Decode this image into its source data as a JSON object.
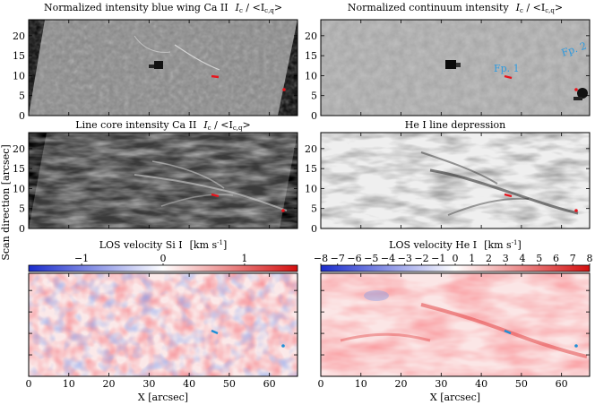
{
  "figure": {
    "panels": [
      {
        "id": "p1",
        "title": "Normalized intensity blue wing Ca II",
        "title_math": "I",
        "title_sub": "c",
        "title_rest": " / <I",
        "title_sub2": "c,q",
        "title_end": ">",
        "y_ticks": [
          "0",
          "5",
          "10",
          "15",
          "20"
        ]
      },
      {
        "id": "p2",
        "title": "Normalized continuum intensity",
        "title_math": "I",
        "title_sub": "c",
        "title_rest": " / <I",
        "title_sub2": "c,q",
        "title_end": ">",
        "y_ticks": [
          "0",
          "5",
          "10",
          "15",
          "20"
        ],
        "annotations": [
          "Fp. 1",
          "Fp. 2"
        ]
      },
      {
        "id": "p3",
        "title": "Line core intensity Ca II",
        "title_math": "I",
        "title_sub": "c",
        "title_rest": " / <I",
        "title_sub2": "c,q",
        "title_end": ">",
        "y_ticks": [
          "0",
          "5",
          "10",
          "15",
          "20"
        ]
      },
      {
        "id": "p4",
        "title": "He I line depression",
        "y_ticks": [
          "0",
          "5",
          "10",
          "15",
          "20"
        ]
      },
      {
        "id": "p5",
        "title": "LOS velocity Si I",
        "unit": "[km s",
        "unit_exp": "-1",
        "unit_end": "]",
        "colorbar_ticks": [
          "−1",
          "0",
          "1"
        ]
      },
      {
        "id": "p6",
        "title": "LOS velocity He I",
        "unit": "[km s",
        "unit_exp": "-1",
        "unit_end": "]",
        "colorbar_ticks": [
          "−8",
          "−7",
          "−6",
          "−5",
          "−4",
          "−3",
          "−2",
          "−1",
          "0",
          "1",
          "2",
          "3",
          "4",
          "5",
          "6",
          "7",
          "8"
        ]
      }
    ],
    "y_label": "Scan direction  [arcsec]",
    "x_label": "X   [arcsec]",
    "x_ticks": [
      "0",
      "10",
      "20",
      "30",
      "40",
      "50",
      "60"
    ],
    "colors": {
      "marker_red": "#e8141c",
      "marker_blue": "#1f8fd6",
      "annot": "#2e9be0"
    }
  }
}
